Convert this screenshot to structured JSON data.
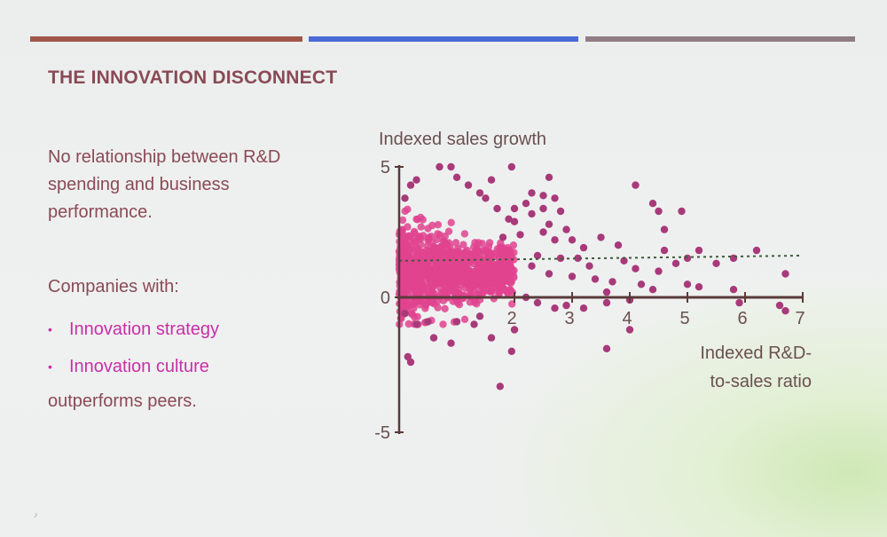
{
  "colors": {
    "bar_left": "#a0574a",
    "bar_center": "#4a6bd6",
    "bar_right": "#8f7d83",
    "title": "#8a4a55",
    "body_text": "#8a4a55",
    "bullet_text": "#c72fa8",
    "axis": "#5a3a3a",
    "point_dense": "#e0438f",
    "point_outlier": "#a83a7a",
    "trend": "#3e5a3a"
  },
  "slide": {
    "title": "THE INNOVATION DISCONNECT",
    "paragraph": "No relationship between R&D spending and business performance.",
    "companies_label": "Companies with:",
    "bullets": [
      "Innovation strategy",
      "Innovation culture"
    ],
    "bullet_glyph": "•",
    "closing": "outperforms peers.",
    "corner_mark": "♪"
  },
  "chart_data": {
    "type": "scatter",
    "ylabel": "Indexed sales growth",
    "xlabel_lines": [
      "Indexed R&D-",
      "to-sales ratio"
    ],
    "xlim": [
      0,
      7
    ],
    "ylim": [
      -5,
      5
    ],
    "x_ticks": [
      2,
      3,
      4,
      5,
      6,
      7
    ],
    "y_ticks": [
      5,
      0,
      -5
    ],
    "trend_line": {
      "style": "dotted",
      "x": [
        0,
        7
      ],
      "y": [
        1.4,
        1.6
      ]
    },
    "dense_cluster": {
      "description": "hundreds of overlapping points",
      "x_range": [
        0,
        2.0
      ],
      "y_range": [
        -1.0,
        4.5
      ],
      "color": "pink"
    },
    "points": [
      [
        0.7,
        5.0
      ],
      [
        0.9,
        5.0
      ],
      [
        1.95,
        5.0
      ],
      [
        2.6,
        4.6
      ],
      [
        0.3,
        4.5
      ],
      [
        4.1,
        4.3
      ],
      [
        2.3,
        4.0
      ],
      [
        2.5,
        3.9
      ],
      [
        2.7,
        3.8
      ],
      [
        1.5,
        3.8
      ],
      [
        2.2,
        3.6
      ],
      [
        4.4,
        3.6
      ],
      [
        4.5,
        3.3
      ],
      [
        4.9,
        3.3
      ],
      [
        1.7,
        3.4
      ],
      [
        2.5,
        3.4
      ],
      [
        2.8,
        3.3
      ],
      [
        1.9,
        3.0
      ],
      [
        2.0,
        2.9
      ],
      [
        2.6,
        2.8
      ],
      [
        2.9,
        2.6
      ],
      [
        4.6,
        2.6
      ],
      [
        1.8,
        2.3
      ],
      [
        2.7,
        2.2
      ],
      [
        3.5,
        2.3
      ],
      [
        3.8,
        2.0
      ],
      [
        4.6,
        1.8
      ],
      [
        5.2,
        1.8
      ],
      [
        6.2,
        1.8
      ],
      [
        2.4,
        1.6
      ],
      [
        2.8,
        1.5
      ],
      [
        3.1,
        1.5
      ],
      [
        3.3,
        1.2
      ],
      [
        3.9,
        1.4
      ],
      [
        4.1,
        1.1
      ],
      [
        4.5,
        1.0
      ],
      [
        4.8,
        1.3
      ],
      [
        5.0,
        1.5
      ],
      [
        5.5,
        1.3
      ],
      [
        5.8,
        1.5
      ],
      [
        6.7,
        0.9
      ],
      [
        2.3,
        1.2
      ],
      [
        2.6,
        0.9
      ],
      [
        3.0,
        0.8
      ],
      [
        3.4,
        0.7
      ],
      [
        3.7,
        0.6
      ],
      [
        4.2,
        0.5
      ],
      [
        4.4,
        0.3
      ],
      [
        5.0,
        0.5
      ],
      [
        5.2,
        0.4
      ],
      [
        5.8,
        0.3
      ],
      [
        6.6,
        -0.3
      ],
      [
        3.6,
        0.2
      ],
      [
        4.0,
        -0.1
      ],
      [
        2.2,
        0.0
      ],
      [
        2.4,
        -0.2
      ],
      [
        2.7,
        -0.4
      ],
      [
        2.9,
        -0.3
      ],
      [
        3.2,
        -0.4
      ],
      [
        3.6,
        -0.2
      ],
      [
        5.9,
        -0.2
      ],
      [
        6.7,
        -0.5
      ],
      [
        4.0,
        -1.2
      ],
      [
        3.6,
        -1.9
      ],
      [
        2.0,
        -1.2
      ],
      [
        1.95,
        -2.0
      ],
      [
        1.6,
        -1.5
      ],
      [
        1.3,
        -1.0
      ],
      [
        0.15,
        -2.2
      ],
      [
        0.2,
        -2.4
      ],
      [
        0.6,
        -1.5
      ],
      [
        0.9,
        -1.7
      ],
      [
        1.75,
        -3.3
      ],
      [
        0.3,
        -1.0
      ],
      [
        0.5,
        -0.9
      ],
      [
        1.0,
        -0.9
      ],
      [
        1.4,
        -0.7
      ],
      [
        0.1,
        -0.6
      ],
      [
        0.2,
        4.3
      ],
      [
        0.1,
        3.8
      ],
      [
        1.0,
        4.6
      ],
      [
        1.2,
        4.3
      ],
      [
        1.4,
        4.0
      ],
      [
        1.6,
        4.5
      ],
      [
        2.3,
        3.2
      ],
      [
        2.0,
        3.4
      ],
      [
        2.1,
        2.4
      ],
      [
        2.5,
        2.5
      ],
      [
        3.0,
        2.2
      ],
      [
        3.2,
        1.9
      ]
    ]
  }
}
